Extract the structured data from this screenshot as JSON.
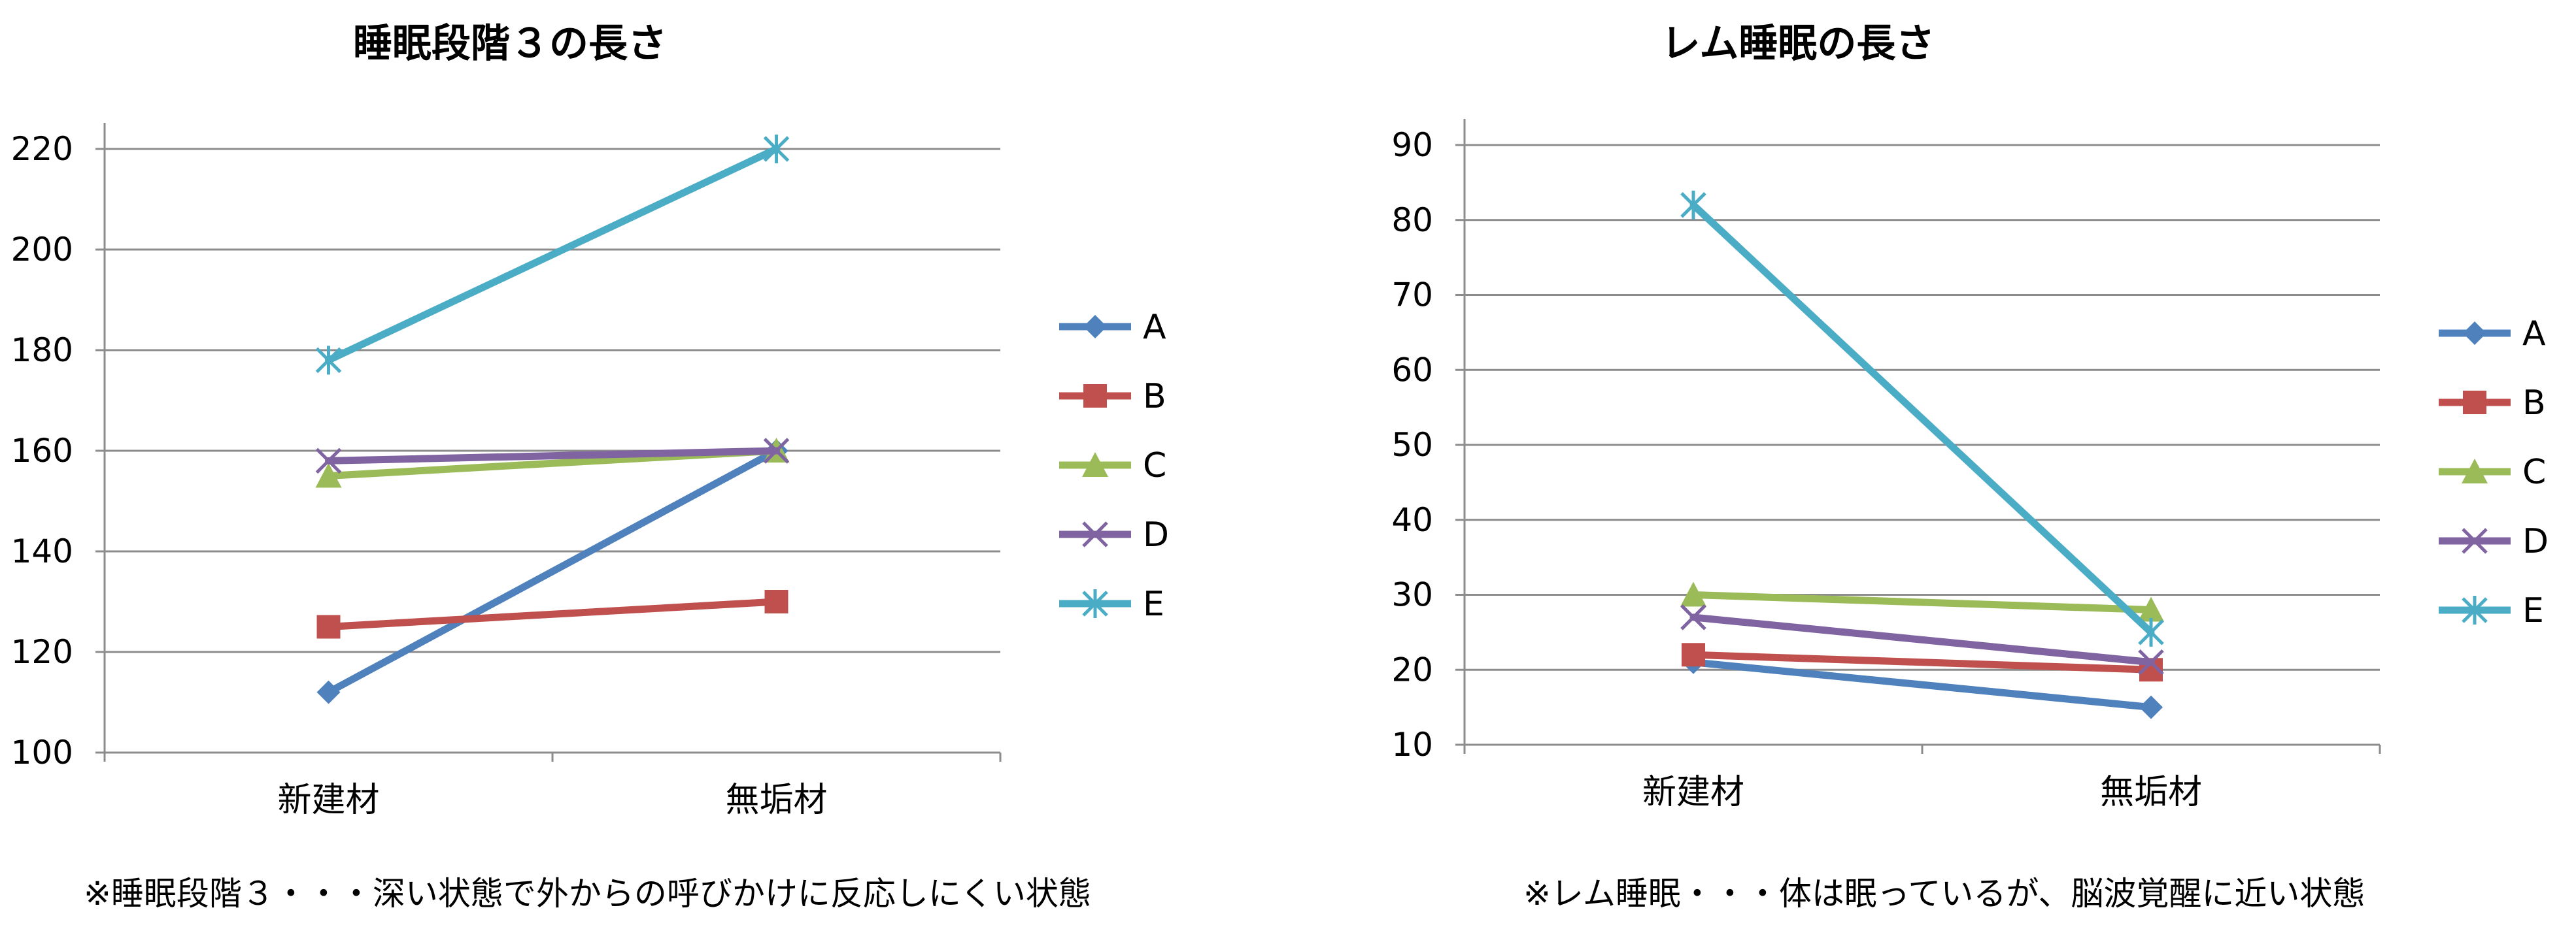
{
  "chart_data": [
    {
      "type": "line",
      "title": "睡眠段階３の長さ",
      "categories": [
        "新建材",
        "無垢材"
      ],
      "ylim": [
        100,
        220
      ],
      "yticks": [
        100,
        120,
        140,
        160,
        180,
        200,
        220
      ],
      "grid": true,
      "legend": "right",
      "series": [
        {
          "name": "A",
          "values": [
            112,
            160
          ],
          "color": "#4F81BD",
          "marker": "diamond"
        },
        {
          "name": "B",
          "values": [
            125,
            130
          ],
          "color": "#C0504D",
          "marker": "square"
        },
        {
          "name": "C",
          "values": [
            155,
            160
          ],
          "color": "#9BBB59",
          "marker": "triangle"
        },
        {
          "name": "D",
          "values": [
            158,
            160
          ],
          "color": "#8064A2",
          "marker": "x"
        },
        {
          "name": "E",
          "values": [
            178,
            220
          ],
          "color": "#4BACC6",
          "marker": "star"
        }
      ],
      "note": "※睡眠段階３・・・深い状態で外からの呼びかけに反応しにくい状態"
    },
    {
      "type": "line",
      "title": "レム睡眠の長さ",
      "categories": [
        "新建材",
        "無垢材"
      ],
      "ylim": [
        10,
        90
      ],
      "yticks": [
        10,
        20,
        30,
        40,
        50,
        60,
        70,
        80,
        90
      ],
      "grid": true,
      "legend": "right",
      "series": [
        {
          "name": "A",
          "values": [
            21,
            15
          ],
          "color": "#4F81BD",
          "marker": "diamond"
        },
        {
          "name": "B",
          "values": [
            22,
            20
          ],
          "color": "#C0504D",
          "marker": "square"
        },
        {
          "name": "C",
          "values": [
            30,
            28
          ],
          "color": "#9BBB59",
          "marker": "triangle"
        },
        {
          "name": "D",
          "values": [
            27,
            21
          ],
          "color": "#8064A2",
          "marker": "x"
        },
        {
          "name": "E",
          "values": [
            82,
            25
          ],
          "color": "#4BACC6",
          "marker": "star"
        }
      ],
      "note": "※レム睡眠・・・体は眠っているが、脳波覚醒に近い状態"
    }
  ]
}
